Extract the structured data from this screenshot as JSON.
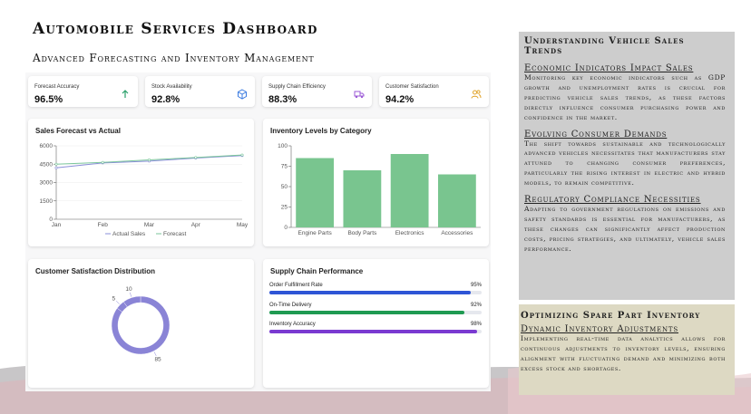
{
  "header": {
    "title": "Automobile Services Dashboard",
    "subtitle": "Advanced Forecasting and Inventory Management"
  },
  "kpis": [
    {
      "label": "Forecast Accuracy",
      "value": "96.5%",
      "icon": "trending-up-icon",
      "color": "#2aa06a"
    },
    {
      "label": "Stock Availability",
      "value": "92.8%",
      "icon": "cube-icon",
      "color": "#3b7be0"
    },
    {
      "label": "Supply Chain Efficiency",
      "value": "88.3%",
      "icon": "truck-icon",
      "color": "#9b59d6"
    },
    {
      "label": "Customer Satisfaction",
      "value": "94.2%",
      "icon": "users-icon",
      "color": "#e0a32a"
    }
  ],
  "sales_chart": {
    "title": "Sales Forecast vs Actual",
    "legend": [
      "Actual Sales",
      "Forecast"
    ]
  },
  "inventory_chart": {
    "title": "Inventory Levels by Category"
  },
  "satisfaction_chart": {
    "title": "Customer Satisfaction Distribution"
  },
  "supply_chain": {
    "title": "Supply Chain Performance",
    "metrics": [
      {
        "label": "Order Fulfillment Rate",
        "value": 95,
        "pct": "95%",
        "color": "#2e55d6"
      },
      {
        "label": "On-Time Delivery",
        "value": 92,
        "pct": "92%",
        "color": "#1f9a52"
      },
      {
        "label": "Inventory Accuracy",
        "value": 98,
        "pct": "98%",
        "color": "#7a3ad1"
      }
    ]
  },
  "chart_data": [
    {
      "type": "line",
      "title": "Sales Forecast vs Actual",
      "categories": [
        "Jan",
        "Feb",
        "Mar",
        "Apr",
        "May"
      ],
      "ylim": [
        0,
        6000
      ],
      "yticks": [
        0,
        1500,
        3000,
        4500,
        6000
      ],
      "series": [
        {
          "name": "Actual Sales",
          "values": [
            4200,
            4600,
            4750,
            5000,
            5200
          ],
          "color": "#8a8fd8"
        },
        {
          "name": "Forecast",
          "values": [
            4500,
            4650,
            4850,
            5050,
            5250
          ],
          "color": "#7bc69b"
        }
      ]
    },
    {
      "type": "bar",
      "title": "Inventory Levels by Category",
      "categories": [
        "Engine Parts",
        "Body Parts",
        "Electronics",
        "Accessories"
      ],
      "values": [
        85,
        70,
        90,
        65
      ],
      "ylim": [
        0,
        100
      ],
      "yticks": [
        0,
        25,
        50,
        75,
        100
      ],
      "color": "#79c58f"
    },
    {
      "type": "pie",
      "title": "Customer Satisfaction Distribution",
      "labels": [
        "85",
        "5",
        "10"
      ],
      "values": [
        85,
        5,
        10
      ],
      "color": "#8a84d6"
    }
  ],
  "sidebar_trends": {
    "title": "Understanding Vehicle Sales Trends",
    "sections": [
      {
        "heading": "Economic Indicators Impact Sales",
        "body": "Monitoring key economic indicators such as GDP growth and unemployment rates is crucial for predicting vehicle sales trends, as these factors directly influence consumer purchasing power and confidence in the market."
      },
      {
        "heading": "Evolving Consumer Demands",
        "body": "The shift towards sustainable and technologically advanced vehicles necessitates that manufacturers stay attuned to changing consumer preferences, particularly the rising interest in electric and hybrid models, to remain competitive."
      },
      {
        "heading": "Regulatory Compliance Necessities",
        "body": "Adapting to government regulations on emissions and safety standards is essential for manufacturers, as these changes can significantly affect production costs, pricing strategies, and ultimately, vehicle sales performance."
      }
    ]
  },
  "sidebar_inventory": {
    "title": "Optimizing Spare Part Inventory",
    "sections": [
      {
        "heading": "Dynamic Inventory Adjustments",
        "body": "Implementing real-time data analytics allows for continuous adjustments to inventory levels, ensuring alignment with fluctuating demand and minimizing both excess stock and shortages."
      }
    ]
  }
}
